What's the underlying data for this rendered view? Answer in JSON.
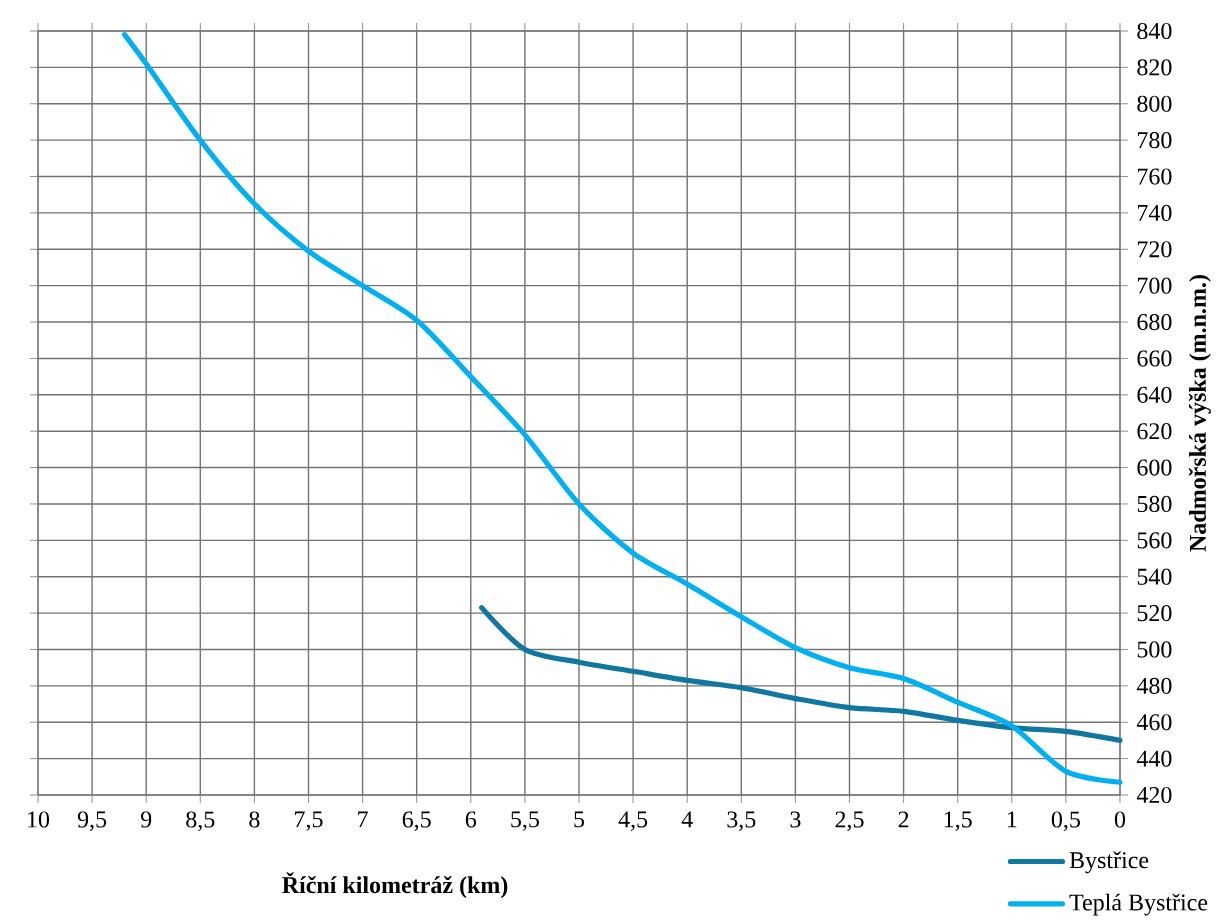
{
  "chart_data": {
    "type": "line",
    "xlabel": "Říční kilometráž (km)",
    "ylabel": "Nadmořská výška (m.n.m.)",
    "xlim": [
      10,
      0
    ],
    "ylim": [
      420,
      840
    ],
    "xticks": [
      10,
      {
        "value": 9.5,
        "label": "9,5"
      },
      9,
      {
        "value": 8.5,
        "label": "8,5"
      },
      8,
      {
        "value": 7.5,
        "label": "7,5"
      },
      7,
      {
        "value": 6.5,
        "label": "6,5"
      },
      6,
      {
        "value": 5.5,
        "label": "5,5"
      },
      5,
      {
        "value": 4.5,
        "label": "4,5"
      },
      4,
      {
        "value": 3.5,
        "label": "3,5"
      },
      3,
      {
        "value": 2.5,
        "label": "2,5"
      },
      2,
      {
        "value": 1.5,
        "label": "1,5"
      },
      1,
      {
        "value": 0.5,
        "label": "0,5"
      },
      0
    ],
    "yticks": [
      420,
      440,
      460,
      480,
      500,
      520,
      540,
      560,
      580,
      600,
      620,
      640,
      660,
      680,
      700,
      720,
      740,
      760,
      780,
      800,
      820,
      840
    ],
    "grid": true,
    "legend": "bottom right",
    "marker": "none",
    "line_style": "solid",
    "series": [
      {
        "name": "Bystřice",
        "color": "#0f77a0",
        "x": [
          5.9,
          5.5,
          5,
          4.5,
          4,
          3.5,
          3,
          2.5,
          2,
          1.5,
          1,
          0.5,
          0
        ],
        "values": [
          523,
          500,
          493,
          488,
          483,
          479,
          473,
          468,
          466,
          461,
          457,
          455,
          450
        ]
      },
      {
        "name": "Teplá Bystřice",
        "color": "#00b0f0",
        "x": [
          9.2,
          9,
          8.5,
          8,
          7.5,
          7,
          6.5,
          6,
          5.5,
          5,
          4.5,
          4,
          3.5,
          3,
          2.5,
          2,
          1.5,
          1,
          0.5,
          0
        ],
        "values": [
          838,
          822,
          780,
          745,
          719,
          700,
          681,
          650,
          618,
          580,
          553,
          536,
          518,
          501,
          490,
          484,
          471,
          458,
          433,
          427
        ]
      }
    ]
  }
}
